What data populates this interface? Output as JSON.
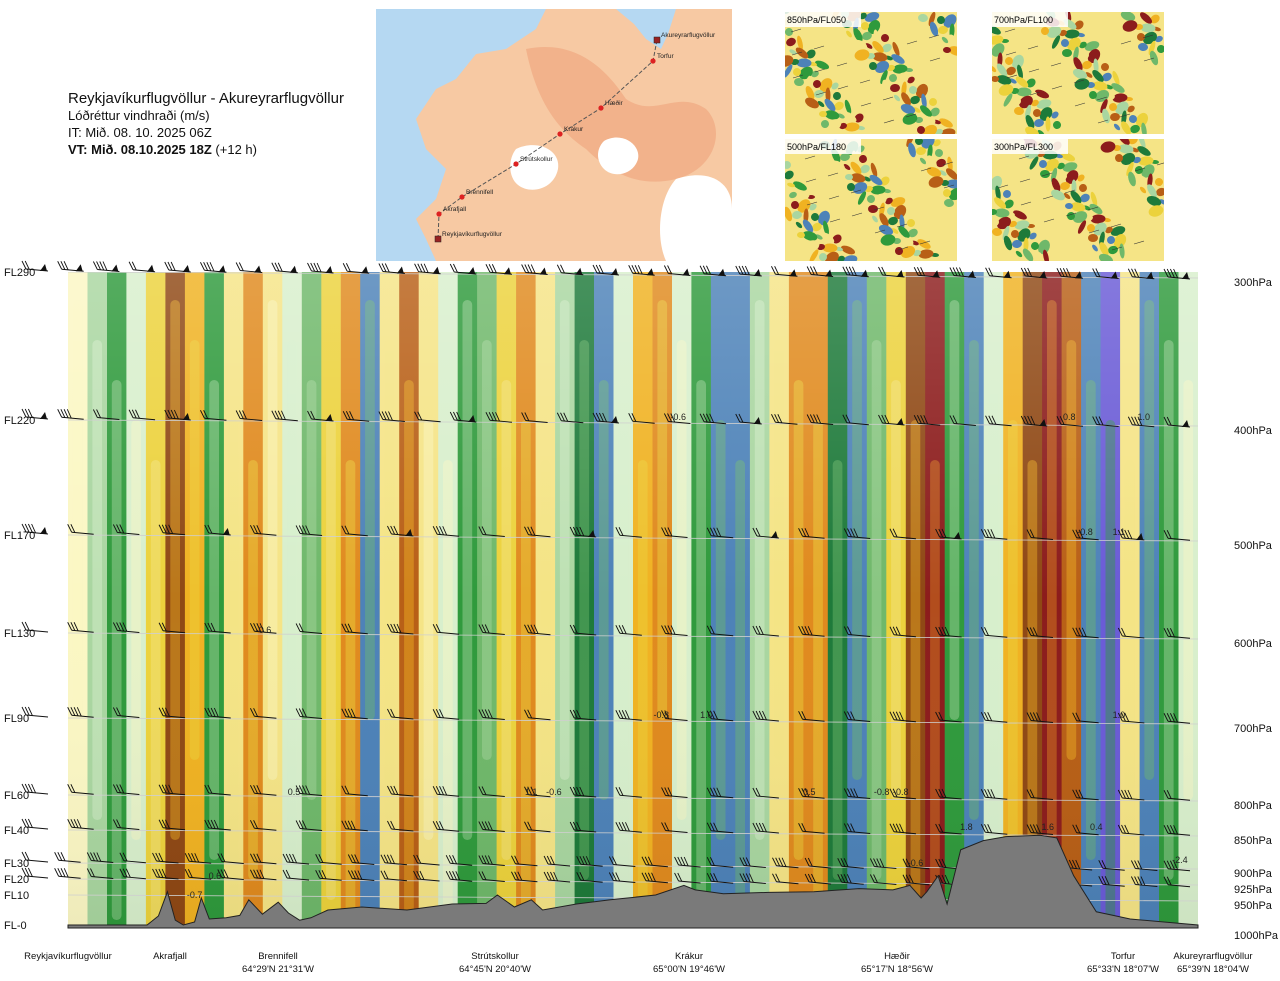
{
  "header": {
    "route": "Reykjavíkurflugvöllur - Akureyrarflugvöllur",
    "variable": "Lóðréttur vindhraði (m/s)",
    "issue_time": "IT: Mið. 08. 10. 2025 06Z",
    "valid_label": "VT: Mið. 08.10.2025 18Z",
    "valid_offset": "(+12 h)"
  },
  "route_map": {
    "waypoints": [
      "Reykjavíkurflugvöllur",
      "Akrafjall",
      "Brennifell",
      "Strútskollur",
      "Krákur",
      "Hæðir",
      "Torfur",
      "Akureyrarflugvöllur"
    ],
    "colors": {
      "sea": "#b5d8f2",
      "land_low": "#f7c9a3",
      "land_high": "#f0a880",
      "glacier": "#ffffff",
      "route": "#555555",
      "point": "#dd2222",
      "airport": "#992222"
    }
  },
  "mini_maps": [
    {
      "label": "850hPa/FL050"
    },
    {
      "label": "700hPa/FL100"
    },
    {
      "label": "500hPa/FL180"
    },
    {
      "label": "300hPa/FL300"
    }
  ],
  "chart_data": {
    "type": "heatmap",
    "title": "Lóðréttur vindhraði (m/s)",
    "left_axis_flight_levels": [
      "FL290",
      "FL220",
      "FL170",
      "FL130",
      "FL90",
      "FL60",
      "FL40",
      "FL30",
      "FL20",
      "FL10",
      "FL-0"
    ],
    "right_axis_pressure": [
      "300hPa",
      "400hPa",
      "500hPa",
      "600hPa",
      "700hPa",
      "800hPa",
      "850hPa",
      "900hPa",
      "925hPa",
      "950hPa",
      "1000hPa"
    ],
    "pressure_values_hpa": [
      300,
      400,
      500,
      600,
      700,
      800,
      850,
      900,
      925,
      950,
      1000
    ],
    "x_stations": [
      {
        "name": "Reykjavíkurflugvöllur",
        "coord": ""
      },
      {
        "name": "Akrafjall",
        "coord": ""
      },
      {
        "name": "Brennifell",
        "coord": "64°29'N 21°31'W"
      },
      {
        "name": "Strútskollur",
        "coord": "64°45'N 20°40'W"
      },
      {
        "name": "Krákur",
        "coord": "65°00'N 19°46'W"
      },
      {
        "name": "Hæðir",
        "coord": "65°17'N 18°56'W"
      },
      {
        "name": "Torfur",
        "coord": "65°33'N 18°07'W"
      },
      {
        "name": "Akureyrarflugvöllur",
        "coord": "65°39'N 18°04'W"
      }
    ],
    "station_fraction": [
      0.0,
      0.082,
      0.186,
      0.375,
      0.545,
      0.735,
      0.964,
      1.0
    ],
    "column_values_ms": [
      0.0,
      -0.3,
      -0.6,
      -0.1,
      0.3,
      0.9,
      0.4,
      -0.6,
      0.2,
      0.5,
      0.1,
      -0.2,
      -0.4,
      0.3,
      0.6,
      -0.8,
      0.2,
      0.7,
      0.1,
      -0.1,
      -0.6,
      -0.4,
      0.3,
      0.5,
      0.2,
      -0.3,
      -0.7,
      -0.9,
      -0.2,
      0.4,
      0.5,
      -0.1,
      -0.6,
      -0.8,
      -0.9,
      -0.3,
      0.2,
      0.5,
      0.6,
      -0.7,
      -0.9,
      -0.5,
      0.3,
      0.8,
      1.0,
      -0.6,
      -0.9,
      -0.2,
      0.4,
      0.9,
      1.0,
      0.7,
      -0.9,
      -1.0,
      0.2,
      -0.8,
      -0.6,
      -0.1
    ],
    "contour_labels": [
      {
        "text": "-0.6",
        "x": 0.54,
        "p": 400
      },
      {
        "text": "0.8",
        "x": 0.886,
        "p": 400
      },
      {
        "text": "1.0",
        "x": 0.952,
        "p": 400
      },
      {
        "text": "-0.8",
        "x": 0.9,
        "p": 500
      },
      {
        "text": "1.1",
        "x": 0.93,
        "p": 500
      },
      {
        "text": "-0.6",
        "x": 0.173,
        "p": 600
      },
      {
        "text": "-0.8",
        "x": 0.525,
        "p": 700
      },
      {
        "text": "1.0",
        "x": 0.565,
        "p": 700
      },
      {
        "text": "1.0",
        "x": 0.93,
        "p": 700
      },
      {
        "text": "0.5",
        "x": 0.2,
        "p": 800
      },
      {
        "text": "1.1",
        "x": 0.41,
        "p": 800
      },
      {
        "text": "-0.6",
        "x": 0.43,
        "p": 800
      },
      {
        "text": "0.5",
        "x": 0.656,
        "p": 800
      },
      {
        "text": "-0.8",
        "x": 0.72,
        "p": 800
      },
      {
        "text": "-0.8",
        "x": 0.737,
        "p": 800
      },
      {
        "text": "1.8",
        "x": 0.795,
        "p": 850
      },
      {
        "text": "1.6",
        "x": 0.867,
        "p": 850
      },
      {
        "text": "0.4",
        "x": 0.91,
        "p": 850
      },
      {
        "text": "-0.7",
        "x": 0.112,
        "p": 955
      },
      {
        "text": "0.6",
        "x": 0.13,
        "p": 925
      },
      {
        "text": "-0.6",
        "x": 0.75,
        "p": 905
      },
      {
        "text": "-2.4",
        "x": 0.984,
        "p": 900
      }
    ],
    "terrain": [
      [
        0.0,
        1004
      ],
      [
        0.07,
        1003
      ],
      [
        0.08,
        985
      ],
      [
        0.088,
        945
      ],
      [
        0.095,
        992
      ],
      [
        0.102,
        1000
      ],
      [
        0.112,
        995
      ],
      [
        0.118,
        955
      ],
      [
        0.125,
        990
      ],
      [
        0.14,
        988
      ],
      [
        0.152,
        984
      ],
      [
        0.16,
        958
      ],
      [
        0.172,
        982
      ],
      [
        0.186,
        962
      ],
      [
        0.195,
        980
      ],
      [
        0.205,
        992
      ],
      [
        0.215,
        988
      ],
      [
        0.23,
        975
      ],
      [
        0.26,
        970
      ],
      [
        0.3,
        975
      ],
      [
        0.34,
        965
      ],
      [
        0.37,
        964
      ],
      [
        0.38,
        950
      ],
      [
        0.395,
        970
      ],
      [
        0.41,
        958
      ],
      [
        0.42,
        975
      ],
      [
        0.45,
        965
      ],
      [
        0.48,
        958
      ],
      [
        0.52,
        950
      ],
      [
        0.545,
        935
      ],
      [
        0.555,
        942
      ],
      [
        0.58,
        948
      ],
      [
        0.62,
        946
      ],
      [
        0.66,
        945
      ],
      [
        0.7,
        940
      ],
      [
        0.73,
        942
      ],
      [
        0.745,
        935
      ],
      [
        0.755,
        955
      ],
      [
        0.76,
        945
      ],
      [
        0.77,
        920
      ],
      [
        0.778,
        965
      ],
      [
        0.79,
        880
      ],
      [
        0.81,
        866
      ],
      [
        0.83,
        860
      ],
      [
        0.86,
        858
      ],
      [
        0.875,
        862
      ],
      [
        0.89,
        920
      ],
      [
        0.91,
        978
      ],
      [
        0.94,
        990
      ],
      [
        0.97,
        995
      ],
      [
        1.0,
        1000
      ]
    ],
    "wind_barb_levels_hpa": [
      300,
      400,
      500,
      600,
      700,
      800,
      850,
      900,
      925
    ],
    "color_scale": [
      "#6a5bd6",
      "#4d82b8",
      "#1e7a3a",
      "#2f9a3c",
      "#6fb86a",
      "#a9d6a0",
      "#d8efcc",
      "#fbf7c4",
      "#f5e486",
      "#ecd23c",
      "#f0b222",
      "#e08a1e",
      "#b85f16",
      "#8f4814",
      "#8c1c1c"
    ]
  }
}
